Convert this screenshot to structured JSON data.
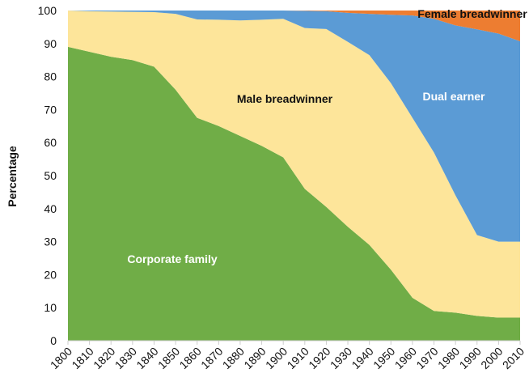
{
  "chart_data": {
    "type": "area",
    "stacked": true,
    "title": "",
    "xlabel": "",
    "ylabel": "Percentage",
    "xlim": [
      1800,
      2010
    ],
    "ylim": [
      0,
      100
    ],
    "grid": false,
    "x": [
      1800,
      1810,
      1820,
      1830,
      1840,
      1850,
      1860,
      1870,
      1880,
      1890,
      1900,
      1910,
      1920,
      1930,
      1940,
      1950,
      1960,
      1970,
      1980,
      1990,
      2000,
      2010
    ],
    "yticks": [
      0,
      10,
      20,
      30,
      40,
      50,
      60,
      70,
      80,
      90,
      100
    ],
    "series": [
      {
        "name": "Corporate family",
        "color": "#70ad47",
        "label_color": "#ffffff",
        "values": [
          89,
          87.5,
          86,
          85,
          83,
          76,
          67.5,
          65,
          62,
          59,
          55.5,
          46,
          40.5,
          34.5,
          29,
          21.5,
          13,
          9,
          8.5,
          7.5,
          7,
          7
        ]
      },
      {
        "name": "Male breadwinner",
        "color": "#fde59a",
        "label_color": "#111111",
        "values": [
          11,
          12.3,
          13.7,
          14.6,
          16.5,
          23,
          29.8,
          32.2,
          35,
          38.2,
          42,
          48.7,
          53.9,
          56,
          57.5,
          56.5,
          54.5,
          48,
          35.5,
          24.5,
          23,
          23
        ]
      },
      {
        "name": "Dual earner",
        "color": "#5b9bd5",
        "label_color": "#ffffff",
        "values": [
          0,
          0.2,
          0.3,
          0.4,
          0.5,
          1,
          2.7,
          2.8,
          3,
          2.8,
          2.5,
          5.2,
          5.4,
          8.8,
          12.5,
          20.7,
          31,
          40.5,
          51.5,
          62.3,
          63,
          60.7
        ]
      },
      {
        "name": "Female breadwinner",
        "color": "#ed7d31",
        "label_color": "#111111",
        "values": [
          0,
          0,
          0,
          0,
          0,
          0,
          0,
          0,
          0,
          0,
          0,
          0.1,
          0.2,
          0.7,
          1,
          1.3,
          1.5,
          2.5,
          4.5,
          5.7,
          7,
          9.3
        ]
      }
    ],
    "legend": "inline labels"
  }
}
